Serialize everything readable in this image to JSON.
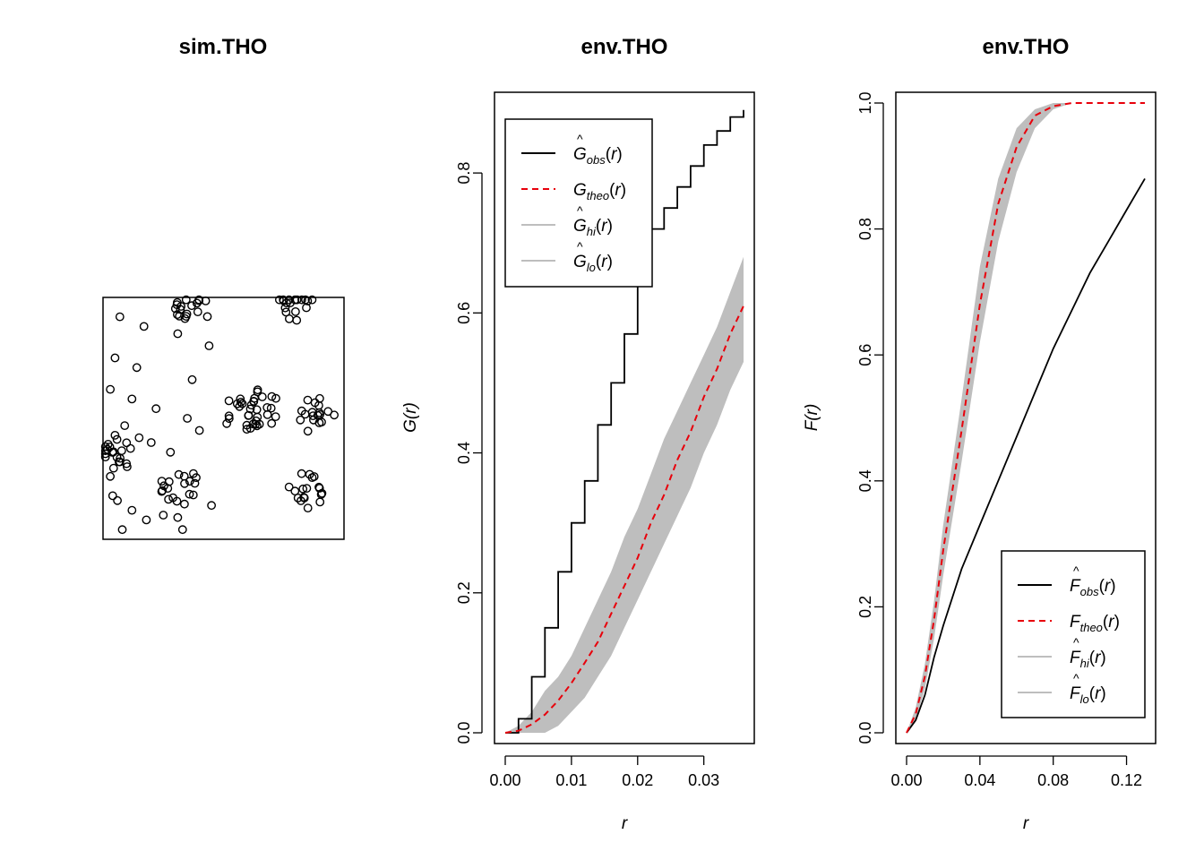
{
  "colors": {
    "obs": "#000000",
    "theo": "#e8000b",
    "envelope": "#bebebe",
    "axis": "#000000"
  },
  "chart_data": [
    {
      "type": "scatter",
      "title": "sim.THO",
      "xlim": [
        0,
        1
      ],
      "ylim": [
        0,
        1
      ],
      "points": [
        [
          0.08,
          0.04
        ],
        [
          0.33,
          0.04
        ],
        [
          0.18,
          0.08
        ],
        [
          0.31,
          0.09
        ],
        [
          0.25,
          0.1
        ],
        [
          0.12,
          0.12
        ],
        [
          0.45,
          0.14
        ],
        [
          0.06,
          0.16
        ],
        [
          0.04,
          0.18
        ],
        [
          0.36,
          0.24
        ],
        [
          0.03,
          0.26
        ],
        [
          0.1,
          0.3
        ],
        [
          0.07,
          0.32
        ],
        [
          0.28,
          0.36
        ],
        [
          0.2,
          0.4
        ],
        [
          0.15,
          0.42
        ],
        [
          0.05,
          0.43
        ],
        [
          0.4,
          0.45
        ],
        [
          0.09,
          0.47
        ],
        [
          0.35,
          0.5
        ],
        [
          0.22,
          0.54
        ],
        [
          0.12,
          0.58
        ],
        [
          0.03,
          0.62
        ],
        [
          0.37,
          0.66
        ],
        [
          0.14,
          0.71
        ],
        [
          0.05,
          0.75
        ],
        [
          0.44,
          0.8
        ],
        [
          0.31,
          0.85
        ],
        [
          0.17,
          0.88
        ],
        [
          0.07,
          0.92
        ]
      ],
      "clusters": [
        [
          0.36,
          0.95
        ],
        [
          0.8,
          0.97
        ],
        [
          0.65,
          0.54
        ],
        [
          0.89,
          0.51
        ],
        [
          0.32,
          0.22
        ],
        [
          0.85,
          0.2
        ],
        [
          0.05,
          0.35
        ],
        [
          0.58,
          0.52
        ]
      ]
    },
    {
      "type": "line",
      "title": "env.THO",
      "xlabel": "r",
      "ylabel": "G(r)",
      "xlim": [
        0.0,
        0.036
      ],
      "ylim": [
        0.0,
        0.9
      ],
      "xticks": [
        "0.00",
        "0.01",
        "0.02",
        "0.03"
      ],
      "xtick_values": [
        0.0,
        0.01,
        0.02,
        0.03
      ],
      "yticks": [
        "0.0",
        "0.2",
        "0.4",
        "0.6",
        "0.8"
      ],
      "ytick_values": [
        0.0,
        0.2,
        0.4,
        0.6,
        0.8
      ],
      "legend": {
        "placement": "top-left",
        "entries": [
          {
            "letter": "G",
            "hat": true,
            "sub": "obs",
            "style": "obs"
          },
          {
            "letter": "G",
            "hat": false,
            "sub": "theo",
            "style": "theo"
          },
          {
            "letter": "G",
            "hat": true,
            "sub": "hi",
            "style": "envelope"
          },
          {
            "letter": "G",
            "hat": true,
            "sub": "lo",
            "style": "envelope"
          }
        ]
      },
      "series": [
        {
          "name": "obs",
          "x": [
            0.0,
            0.002,
            0.004,
            0.006,
            0.008,
            0.01,
            0.012,
            0.014,
            0.016,
            0.018,
            0.02,
            0.022,
            0.024,
            0.026,
            0.028,
            0.03,
            0.032,
            0.034,
            0.036
          ],
          "y": [
            0.0,
            0.02,
            0.08,
            0.15,
            0.23,
            0.3,
            0.36,
            0.44,
            0.5,
            0.57,
            0.64,
            0.72,
            0.75,
            0.78,
            0.81,
            0.84,
            0.86,
            0.88,
            0.89
          ]
        },
        {
          "name": "theo",
          "x": [
            0.0,
            0.002,
            0.004,
            0.006,
            0.008,
            0.01,
            0.012,
            0.014,
            0.016,
            0.018,
            0.02,
            0.022,
            0.024,
            0.026,
            0.028,
            0.03,
            0.032,
            0.034,
            0.036
          ],
          "y": [
            0.0,
            0.003,
            0.012,
            0.026,
            0.046,
            0.071,
            0.1,
            0.13,
            0.17,
            0.21,
            0.25,
            0.3,
            0.34,
            0.39,
            0.43,
            0.48,
            0.52,
            0.57,
            0.61
          ]
        },
        {
          "name": "hi",
          "x": [
            0.0,
            0.002,
            0.004,
            0.006,
            0.008,
            0.01,
            0.012,
            0.014,
            0.016,
            0.018,
            0.02,
            0.022,
            0.024,
            0.026,
            0.028,
            0.03,
            0.032,
            0.034,
            0.036
          ],
          "y": [
            0.0,
            0.01,
            0.03,
            0.06,
            0.08,
            0.11,
            0.15,
            0.19,
            0.23,
            0.28,
            0.32,
            0.37,
            0.42,
            0.46,
            0.5,
            0.54,
            0.58,
            0.63,
            0.68
          ]
        },
        {
          "name": "lo",
          "x": [
            0.0,
            0.002,
            0.004,
            0.006,
            0.008,
            0.01,
            0.012,
            0.014,
            0.016,
            0.018,
            0.02,
            0.022,
            0.024,
            0.026,
            0.028,
            0.03,
            0.032,
            0.034,
            0.036
          ],
          "y": [
            0.0,
            0.0,
            0.0,
            0.0,
            0.01,
            0.03,
            0.05,
            0.08,
            0.11,
            0.15,
            0.19,
            0.23,
            0.27,
            0.31,
            0.35,
            0.4,
            0.44,
            0.49,
            0.53
          ]
        }
      ]
    },
    {
      "type": "line",
      "title": "env.THO",
      "xlabel": "r",
      "ylabel": "F(r)",
      "xlim": [
        0.0,
        0.13
      ],
      "ylim": [
        0.0,
        1.0
      ],
      "xticks": [
        "0.00",
        "0.04",
        "0.08",
        "0.12"
      ],
      "xtick_values": [
        0.0,
        0.04,
        0.08,
        0.12
      ],
      "yticks": [
        "0.0",
        "0.2",
        "0.4",
        "0.6",
        "0.8",
        "1.0"
      ],
      "ytick_values": [
        0.0,
        0.2,
        0.4,
        0.6,
        0.8,
        1.0
      ],
      "legend": {
        "placement": "bottom-right",
        "entries": [
          {
            "letter": "F",
            "hat": true,
            "sub": "obs",
            "style": "obs"
          },
          {
            "letter": "F",
            "hat": false,
            "sub": "theo",
            "style": "theo"
          },
          {
            "letter": "F",
            "hat": true,
            "sub": "hi",
            "style": "envelope"
          },
          {
            "letter": "F",
            "hat": true,
            "sub": "lo",
            "style": "envelope"
          }
        ]
      },
      "series": [
        {
          "name": "obs",
          "x": [
            0.0,
            0.005,
            0.01,
            0.015,
            0.02,
            0.03,
            0.04,
            0.05,
            0.06,
            0.07,
            0.08,
            0.09,
            0.1,
            0.11,
            0.12,
            0.13
          ],
          "y": [
            0.0,
            0.02,
            0.06,
            0.12,
            0.17,
            0.26,
            0.33,
            0.4,
            0.47,
            0.54,
            0.61,
            0.67,
            0.73,
            0.78,
            0.83,
            0.88
          ]
        },
        {
          "name": "theo",
          "x": [
            0.0,
            0.005,
            0.01,
            0.015,
            0.02,
            0.03,
            0.04,
            0.05,
            0.06,
            0.07,
            0.08,
            0.09,
            0.1,
            0.11,
            0.12,
            0.13
          ],
          "y": [
            0.0,
            0.03,
            0.09,
            0.18,
            0.29,
            0.48,
            0.68,
            0.84,
            0.93,
            0.98,
            0.995,
            1.0,
            1.0,
            1.0,
            1.0,
            1.0
          ]
        },
        {
          "name": "hi",
          "x": [
            0.0,
            0.005,
            0.01,
            0.015,
            0.02,
            0.03,
            0.04,
            0.05,
            0.06,
            0.07,
            0.08,
            0.09,
            0.1,
            0.11,
            0.12,
            0.13
          ],
          "y": [
            0.0,
            0.04,
            0.11,
            0.21,
            0.33,
            0.53,
            0.74,
            0.88,
            0.96,
            0.99,
            1.0,
            1.0,
            1.0,
            1.0,
            1.0,
            1.0
          ]
        },
        {
          "name": "lo",
          "x": [
            0.0,
            0.005,
            0.01,
            0.015,
            0.02,
            0.03,
            0.04,
            0.05,
            0.06,
            0.07,
            0.08,
            0.09,
            0.1,
            0.11,
            0.12,
            0.13
          ],
          "y": [
            0.0,
            0.02,
            0.07,
            0.15,
            0.25,
            0.43,
            0.62,
            0.78,
            0.89,
            0.96,
            0.99,
            1.0,
            1.0,
            1.0,
            1.0,
            1.0
          ]
        }
      ]
    }
  ]
}
